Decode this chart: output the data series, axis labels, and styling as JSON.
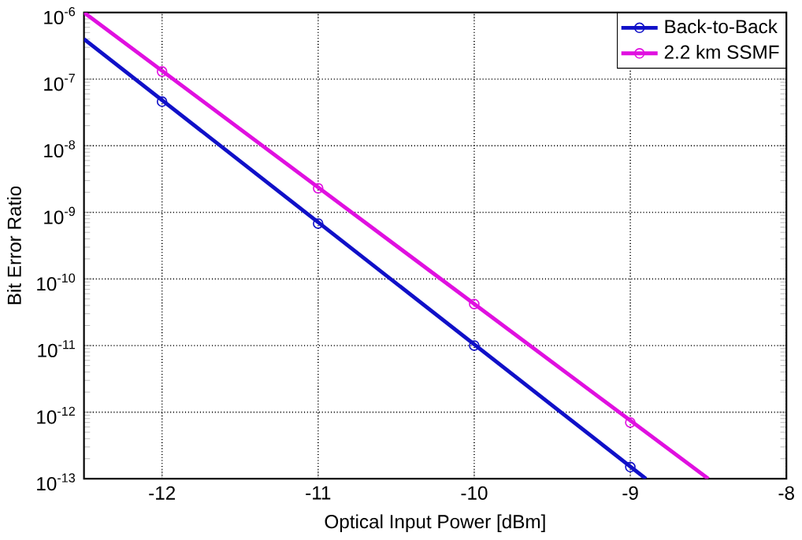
{
  "chart_data": {
    "type": "line",
    "xlabel": "Optical Input Power [dBm]",
    "ylabel": "Bit Error Ratio",
    "log": "y",
    "xlim": [
      -12.5,
      -8
    ],
    "xticks": [
      -12,
      -11,
      -10,
      -9,
      -8
    ],
    "ylim": [
      1e-13,
      1e-06
    ],
    "yticks": [
      {
        "value": 1e-13,
        "label": "10$^{-13}$"
      },
      {
        "value": 1e-12,
        "label": "10$^{-12}$"
      },
      {
        "value": 1e-11,
        "label": "10$^{-11}$"
      },
      {
        "value": 1e-10,
        "label": "10$^{-10}$"
      },
      {
        "value": 1e-09,
        "label": "10$^{-9}$"
      },
      {
        "value": 1e-08,
        "label": "10$^{-8}$"
      },
      {
        "value": 1e-07,
        "label": "10$^{-7}$"
      },
      {
        "value": 1e-06,
        "label": "10$^{-6}$"
      }
    ],
    "grid": true,
    "legend": "top right",
    "series": [
      {
        "name": "Back-to-Back",
        "type": "scatter",
        "color": "#1010c8",
        "marker": "circle",
        "x": [
          -12,
          -11,
          -10,
          -9
        ],
        "values": [
          4.6e-08,
          6.8e-10,
          1e-11,
          1.5e-13
        ]
      },
      {
        "name": "2.2 km SSMF",
        "type": "scatter",
        "color": "#e010e0",
        "marker": "circle",
        "x": [
          -12,
          -11,
          -10,
          -9
        ],
        "values": [
          1.3e-07,
          2.3e-09,
          4.2e-11,
          7e-13
        ]
      },
      {
        "color": "#1010c8",
        "marker": "none",
        "x": [
          -12.5,
          -8.9
        ],
        "values": [
          4e-07,
          1e-13
        ]
      },
      {
        "color": "#e010e0",
        "marker": "none",
        "x": [
          -12.5,
          -8.5
        ],
        "values": [
          1e-06,
          1e-13
        ]
      }
    ]
  }
}
